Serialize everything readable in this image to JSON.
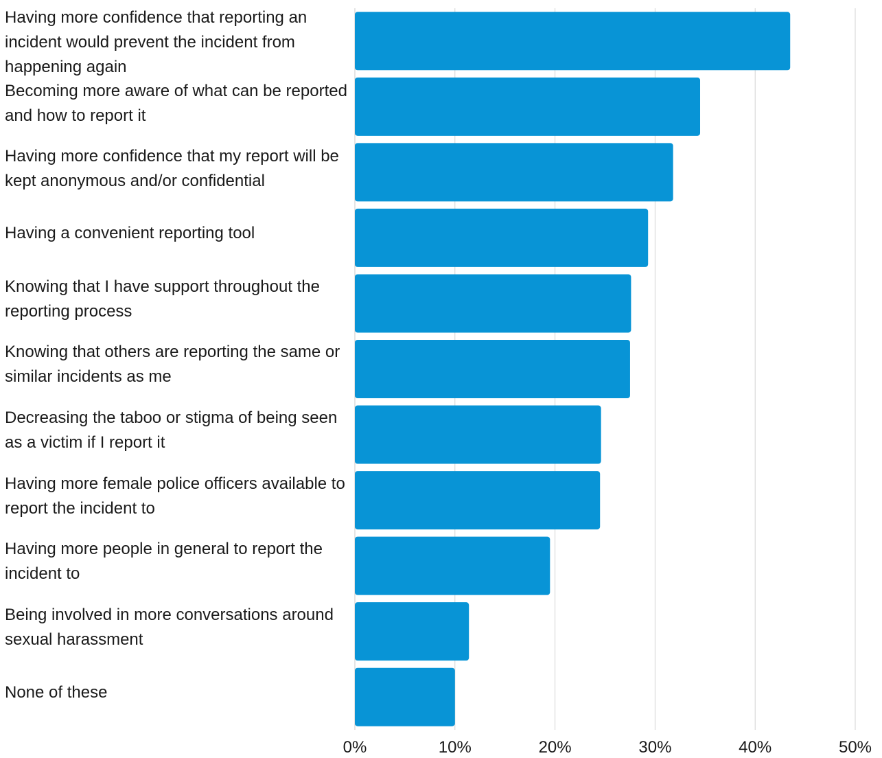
{
  "chart_data": {
    "type": "bar",
    "orientation": "horizontal",
    "categories": [
      "Having more confidence that reporting an incident would prevent the incident from happening again",
      "Becoming more aware of what can be reported and how to report it",
      "Having more confidence that my report will be kept anonymous and/or confidential",
      "Having a convenient reporting tool",
      "Knowing that I have support throughout the reporting process",
      "Knowing that others are reporting the same or similar incidents as me",
      "Decreasing the taboo or stigma of being seen as a victim if I report it",
      "Having more female police officers available to report the incident to",
      "Having more people in general to report the incident to",
      "Being involved in more conversations around sexual harassment",
      "None of these"
    ],
    "values": [
      43.5,
      34.5,
      31.8,
      29.3,
      27.6,
      27.5,
      24.6,
      24.5,
      19.5,
      11.4,
      10.0
    ],
    "xlim": [
      0,
      50
    ],
    "xticks": [
      "0%",
      "10%",
      "20%",
      "30%",
      "40%",
      "50%"
    ],
    "grid": "vertical",
    "bar_color": "#0894d6",
    "grid_color": "#d3d3d3",
    "title": "",
    "xlabel": "",
    "ylabel": ""
  }
}
